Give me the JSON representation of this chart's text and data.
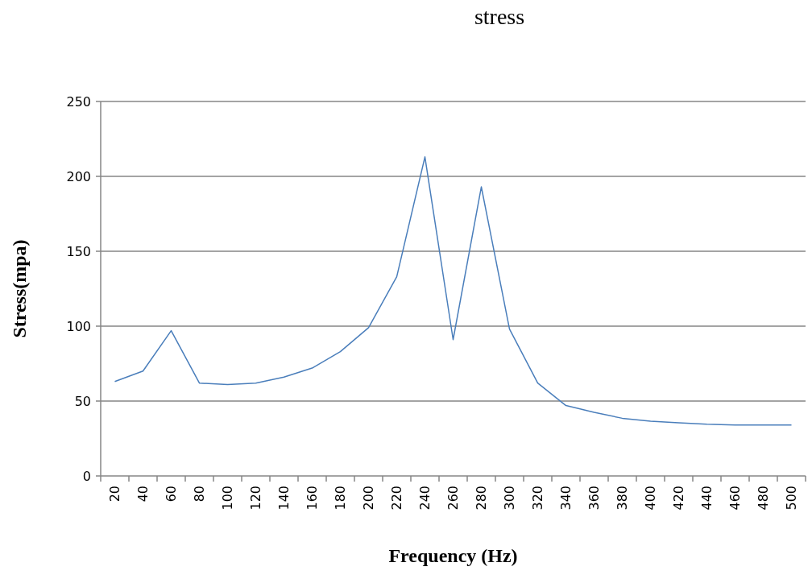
{
  "chart_data": {
    "type": "line",
    "title": "stress",
    "xlabel": "Frequency (Hz)",
    "ylabel": "Stress(mpa)",
    "categories": [
      "20",
      "40",
      "60",
      "80",
      "100",
      "120",
      "140",
      "160",
      "180",
      "200",
      "220",
      "240",
      "260",
      "280",
      "300",
      "320",
      "340",
      "360",
      "380",
      "400",
      "420",
      "440",
      "460",
      "480",
      "500"
    ],
    "series": [
      {
        "color": "#4a7ebb",
        "values": [
          63,
          70,
          97,
          62,
          61,
          62,
          66,
          72,
          83,
          99,
          133,
          213,
          91,
          193,
          98,
          62,
          47,
          42.5,
          38.5,
          36.5,
          35.5,
          34.5,
          34,
          34,
          34
        ]
      }
    ],
    "ylim": [
      0,
      250
    ],
    "yticks": [
      0,
      50,
      100,
      150,
      200,
      250
    ],
    "grid": "y",
    "marker": "none",
    "line_style": "solid"
  }
}
